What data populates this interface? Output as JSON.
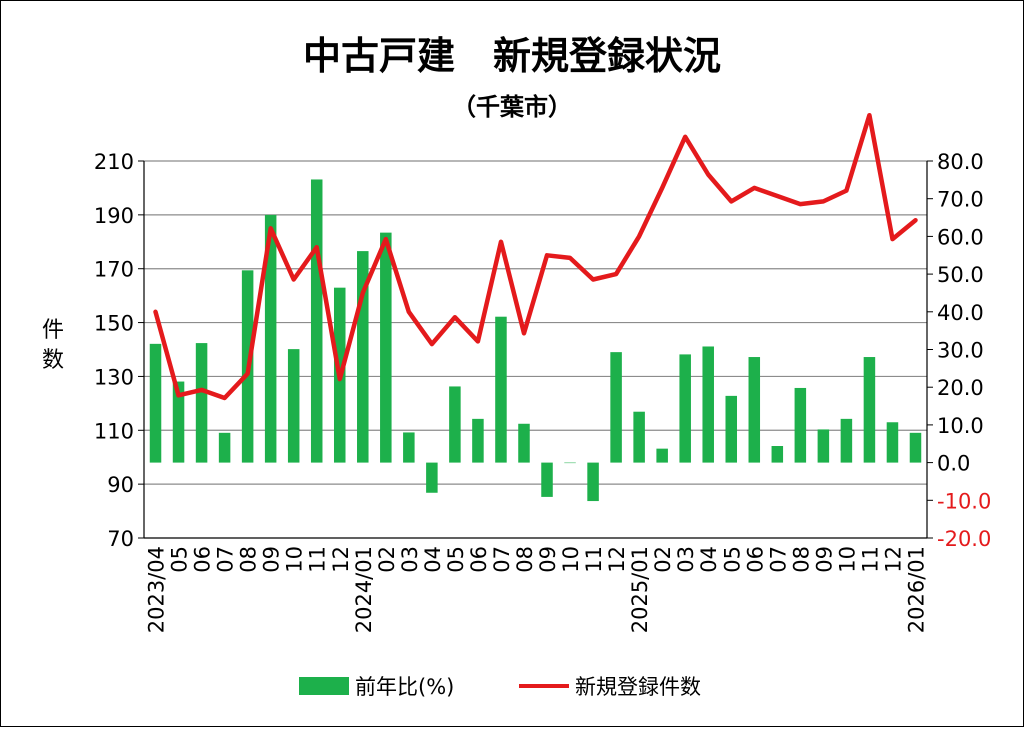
{
  "chart_data": {
    "type": "bar",
    "title": "中古戸建　新規登録状況",
    "subtitle": "（千葉市）",
    "ylabel": "件数",
    "ylim": [
      70,
      210
    ],
    "yticks": [
      70,
      90,
      110,
      130,
      150,
      170,
      190,
      210
    ],
    "y2lim": [
      -20,
      80
    ],
    "y2ticks": [
      "-20.0",
      "-10.0",
      "0.0",
      "10.0",
      "20.0",
      "30.0",
      "40.0",
      "50.0",
      "60.0",
      "70.0",
      "80.0"
    ],
    "grid": true,
    "legend_position": "bottom",
    "categories": [
      "2023/04",
      "05",
      "06",
      "07",
      "08",
      "09",
      "10",
      "11",
      "12",
      "2024/01",
      "02",
      "03",
      "04",
      "05",
      "06",
      "07",
      "08",
      "09",
      "10",
      "11",
      "12",
      "2025/01",
      "02",
      "03",
      "04",
      "05",
      "06",
      "07",
      "08",
      "09",
      "10",
      "11",
      "12",
      "2026/01"
    ],
    "series": [
      {
        "name": "前年比(%)",
        "type": "bar",
        "axis": "right",
        "color": "#1db04b",
        "values": [
          31.5,
          21.5,
          31.7,
          7.9,
          51.0,
          65.7,
          30.1,
          75.1,
          46.4,
          56.1,
          61.0,
          8.0,
          -8.0,
          20.2,
          11.6,
          38.7,
          10.3,
          -9.1,
          0.0,
          -10.2,
          29.3,
          13.5,
          3.7,
          28.7,
          30.8,
          17.7,
          28.0,
          4.4,
          19.8,
          8.8,
          11.6,
          28.0,
          10.7,
          7.9
        ]
      },
      {
        "name": "新規登録件数",
        "type": "line",
        "axis": "left",
        "color": "#e41a1c",
        "values": [
          154,
          123,
          125,
          122,
          131,
          185,
          166,
          178,
          129,
          161,
          181,
          154,
          142,
          152,
          143,
          180,
          146,
          175,
          174,
          166,
          168,
          182,
          200,
          219,
          205,
          195,
          200,
          197,
          194,
          195,
          199,
          227,
          181,
          188
        ]
      }
    ]
  }
}
